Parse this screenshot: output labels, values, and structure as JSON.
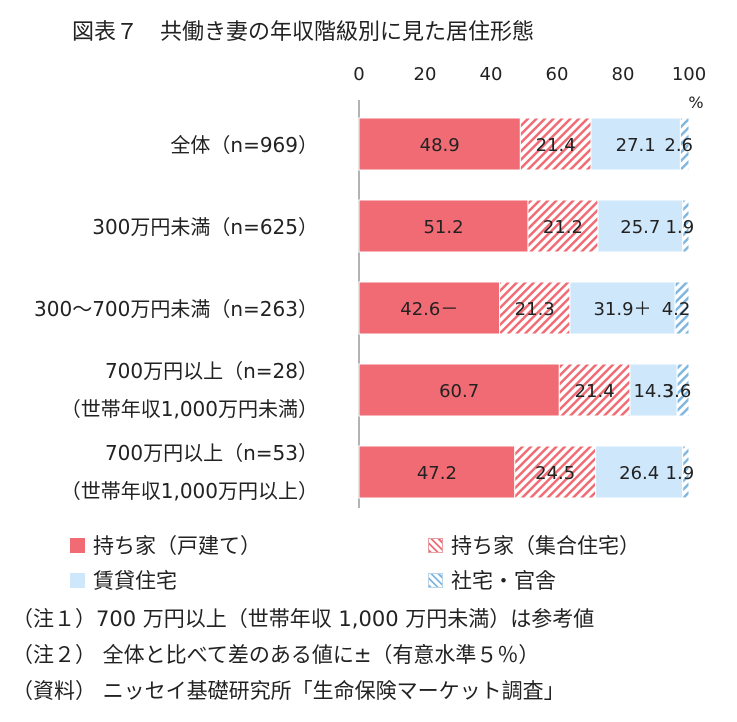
{
  "title": "図表７　共働き妻の年収階級別に見た居住形態",
  "chart_data": {
    "type": "bar",
    "stacked": true,
    "orientation": "horizontal",
    "unit": "%",
    "xlim": [
      0,
      100
    ],
    "xticks": [
      "0",
      "20",
      "40",
      "60",
      "80",
      "100"
    ],
    "categories": [
      {
        "lines": [
          "全体（n=969）"
        ]
      },
      {
        "lines": [
          "300万円未満（n=625）"
        ]
      },
      {
        "lines": [
          "300～700万円未満（n=263）"
        ]
      },
      {
        "lines": [
          "700万円以上（n=28）",
          "（世帯年収1,000万円未満）"
        ]
      },
      {
        "lines": [
          "700万円以上（n=53）",
          "（世帯年収1,000万円以上）"
        ]
      }
    ],
    "series": [
      {
        "name": "持ち家（戸建て）",
        "color": "#f06b73",
        "pattern": "solid",
        "values": [
          48.9,
          51.2,
          42.6,
          60.7,
          47.2
        ],
        "labels": [
          "48.9",
          "51.2",
          "42.6－",
          "60.7",
          "47.2"
        ]
      },
      {
        "name": "持ち家（集合住宅）",
        "color": "#f06b73",
        "pattern": "hatch",
        "values": [
          21.4,
          21.2,
          21.3,
          21.4,
          24.5
        ],
        "labels": [
          "21.4",
          "21.2",
          "21.3",
          "21.4",
          "24.5"
        ]
      },
      {
        "name": "賃貸住宅",
        "color": "#cfe7fa",
        "pattern": "solid",
        "values": [
          27.1,
          25.7,
          31.9,
          14.3,
          26.4
        ],
        "labels": [
          "27.1",
          "25.7",
          "31.9＋",
          "14.3",
          "26.4"
        ]
      },
      {
        "name": "社宅・官舎",
        "color": "#7fb7e0",
        "pattern": "hatch",
        "values": [
          2.6,
          1.9,
          4.2,
          3.6,
          1.9
        ],
        "labels": [
          "2.6",
          "1.9",
          "4.2",
          "3.6",
          "1.9"
        ]
      }
    ]
  },
  "notes": [
    "（注１）700 万円以上（世帯年収 1,000 万円未満）は参考値",
    "（注２） 全体と比べて差のある値に±（有意水準５％）",
    "（資料） ニッセイ基礎研究所「生命保険マーケット調査」"
  ]
}
